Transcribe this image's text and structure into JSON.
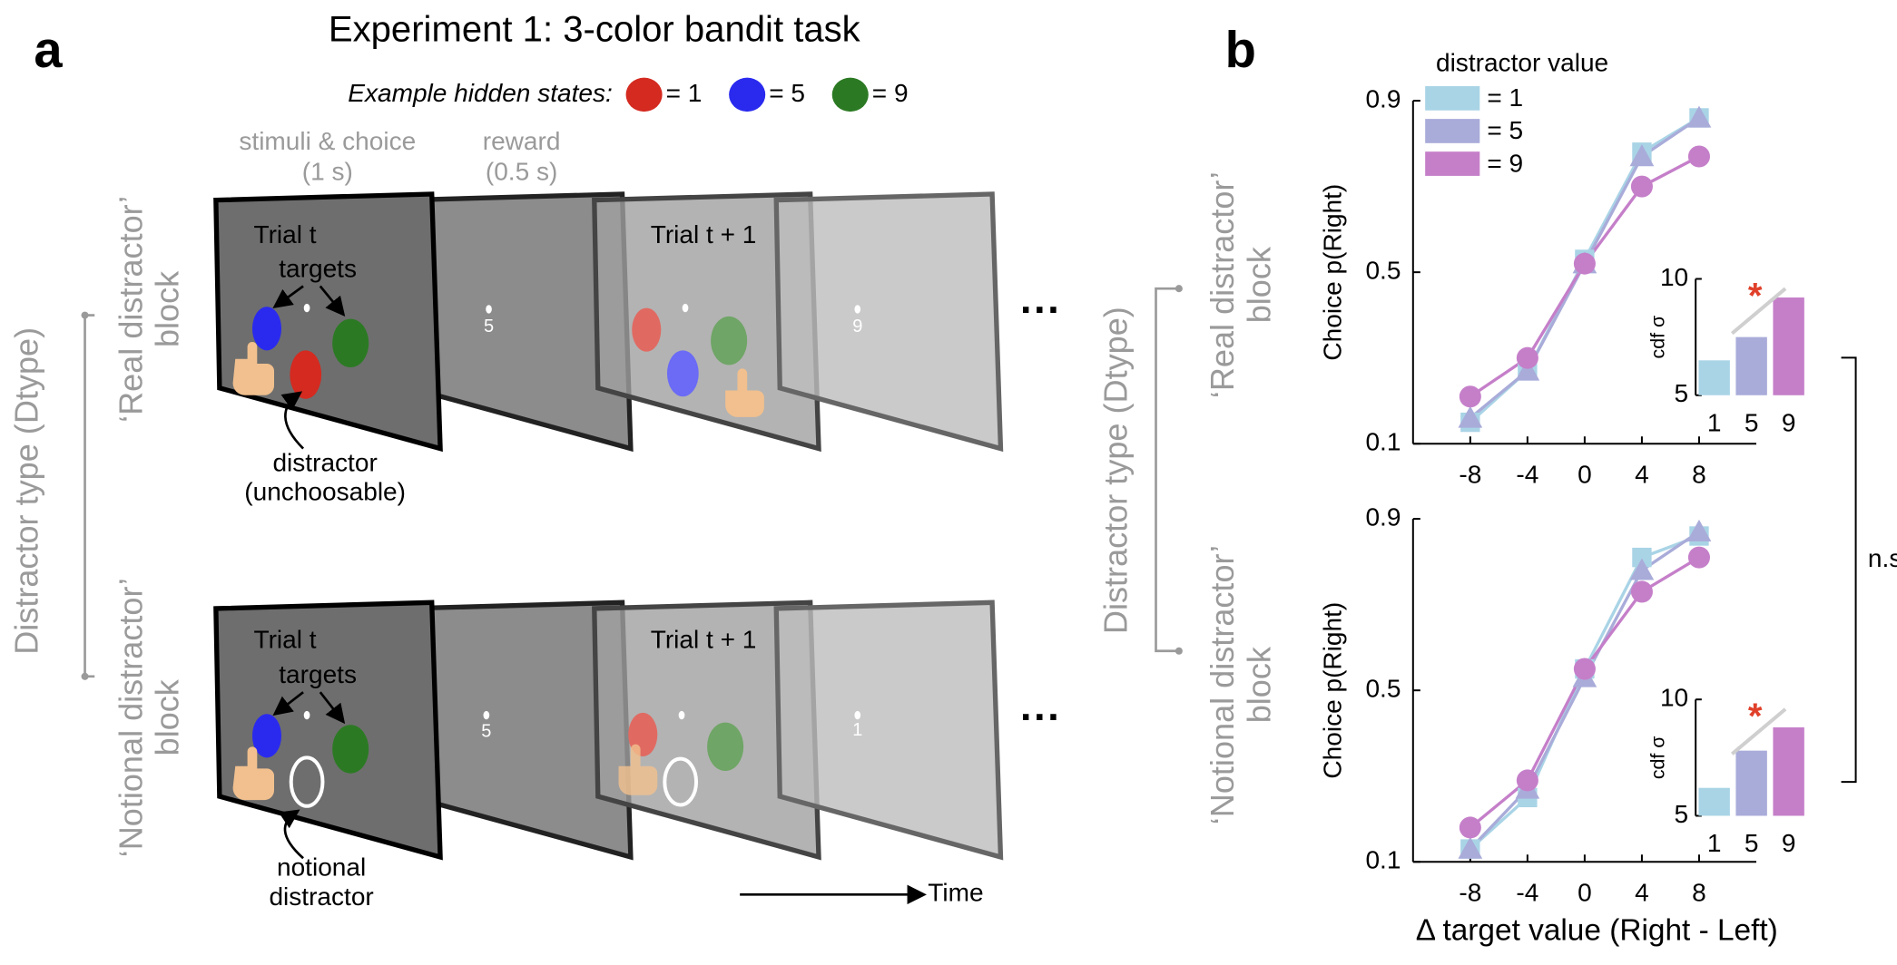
{
  "panel_a": {
    "label": "a",
    "title": "Experiment 1: 3-color bandit task",
    "hidden_states": {
      "label": "Example hidden states:",
      "values": [
        "= 1",
        "= 5",
        "= 9"
      ]
    },
    "phases": [
      {
        "name": "stimuli & choice",
        "duration": "(1 s)"
      },
      {
        "name": "reward",
        "duration": "(0.5 s)"
      }
    ],
    "axis_label": "Distractor type (Dtype)",
    "blocks": [
      {
        "name": "‘Real distractor’",
        "suffix": "block",
        "trial": "Trial t",
        "next_trial": "Trial t + 1",
        "targets": "targets",
        "distractor": [
          "distractor",
          "(unchoosable)"
        ],
        "rewards": [
          "5",
          "9"
        ]
      },
      {
        "name": "‘Notional distractor’",
        "suffix": "block",
        "trial": "Trial t",
        "next_trial": "Trial t + 1",
        "targets": "targets",
        "distractor": [
          "notional",
          "distractor"
        ],
        "rewards": [
          "5",
          "1"
        ]
      }
    ],
    "ellipsis": "···",
    "time": "Time"
  },
  "panel_b": {
    "label": "b",
    "axis_label": "Distractor type (Dtype)",
    "blocks": [
      {
        "name": "‘Real distractor’",
        "suffix": "block"
      },
      {
        "name": "‘Notional distractor’",
        "suffix": "block"
      }
    ],
    "comparison": "n.s."
  },
  "chart_data": [
    {
      "type": "line",
      "legend_title": "distractor value",
      "y_label": "Choice p(Right)",
      "x": [
        -8,
        -4,
        0,
        4,
        8
      ],
      "xlim": [
        -12,
        12
      ],
      "xticks": [
        -8,
        -4,
        0,
        4,
        8
      ],
      "ylim": [
        0.1,
        0.9
      ],
      "yticks": [
        0.1,
        0.5,
        0.9
      ],
      "series": [
        {
          "name": "= 1",
          "color": "#a9d4e6",
          "marker": "square",
          "values": [
            0.15,
            0.27,
            0.53,
            0.78,
            0.86
          ]
        },
        {
          "name": "= 5",
          "color": "#a9acd9",
          "marker": "triangle",
          "values": [
            0.16,
            0.27,
            0.52,
            0.77,
            0.86
          ]
        },
        {
          "name": "= 9",
          "color": "#c57fc9",
          "marker": "circle",
          "values": [
            0.21,
            0.3,
            0.52,
            0.7,
            0.77
          ]
        }
      ]
    },
    {
      "type": "bar",
      "y_label": "cdf σ",
      "annotation": "*",
      "categories": [
        "1",
        "5",
        "9"
      ],
      "colors": [
        "#a9d4e6",
        "#a9acd9",
        "#c57fc9"
      ],
      "values": [
        6.5,
        7.5,
        9.2
      ],
      "ylim": [
        5,
        10
      ],
      "yticks": [
        5,
        10
      ]
    },
    {
      "type": "line",
      "y_label": "Choice p(Right)",
      "x_label": "Δ target value (Right - Left)",
      "x": [
        -8,
        -4,
        0,
        4,
        8
      ],
      "xlim": [
        -12,
        12
      ],
      "xticks": [
        -8,
        -4,
        0,
        4,
        8
      ],
      "ylim": [
        0.1,
        0.9
      ],
      "yticks": [
        0.1,
        0.5,
        0.9
      ],
      "series": [
        {
          "color": "#a9d4e6",
          "marker": "square",
          "values": [
            0.13,
            0.25,
            0.55,
            0.81,
            0.86
          ]
        },
        {
          "color": "#a9acd9",
          "marker": "triangle",
          "values": [
            0.13,
            0.27,
            0.53,
            0.78,
            0.87
          ]
        },
        {
          "color": "#c57fc9",
          "marker": "circle",
          "values": [
            0.18,
            0.29,
            0.55,
            0.73,
            0.81
          ]
        }
      ]
    },
    {
      "type": "bar",
      "y_label": "cdf σ",
      "annotation": "*",
      "categories": [
        "1",
        "5",
        "9"
      ],
      "colors": [
        "#a9d4e6",
        "#a9acd9",
        "#c57fc9"
      ],
      "values": [
        6.2,
        7.8,
        8.8
      ],
      "ylim": [
        5,
        10
      ],
      "yticks": [
        5,
        10
      ]
    }
  ]
}
